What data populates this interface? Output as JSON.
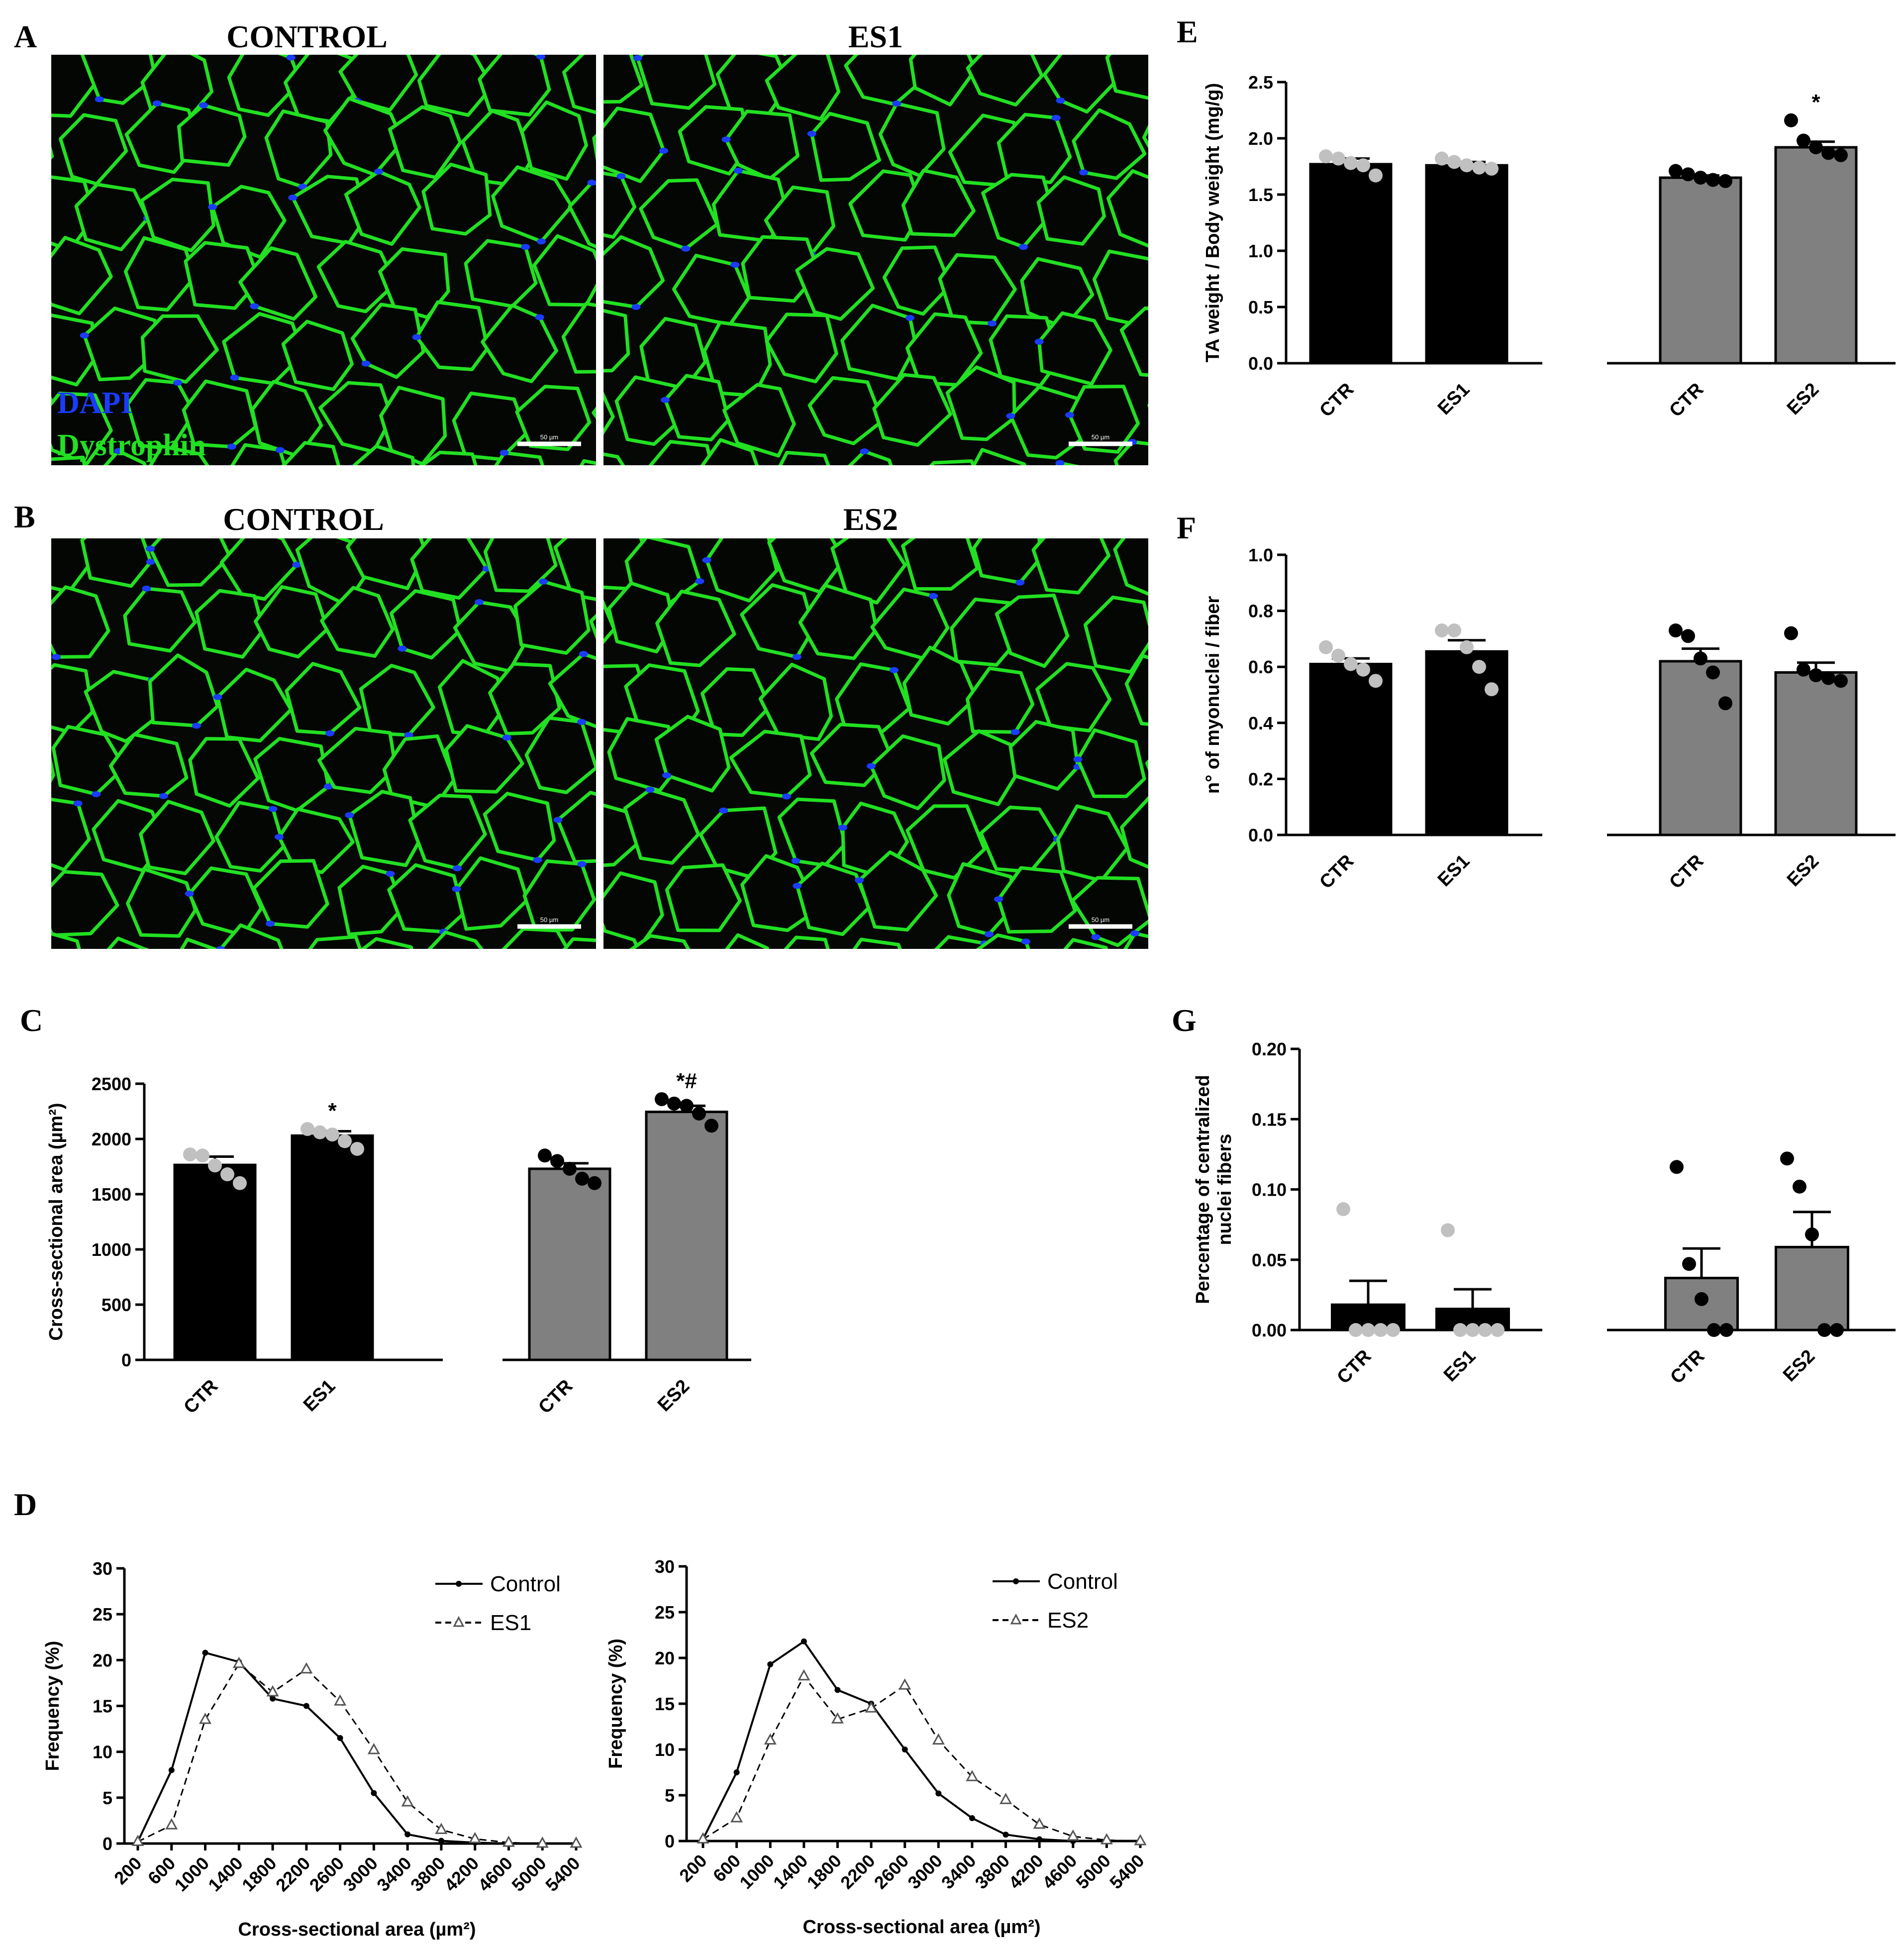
{
  "colors": {
    "group1_bar": "#000000",
    "group2_bar": "#808080",
    "dot_light": "#c0c0c0",
    "dot_dark": "#000000",
    "dapi": "#1a3cff",
    "dystrophin": "#22e022",
    "tissue_bg": "#050805",
    "scale_bar": "#ffffff"
  },
  "panels": {
    "A": {
      "label": "A",
      "left_title": "CONTROL",
      "right_title": "ES1",
      "stain_dapi": "DAPI",
      "stain_dystrophin": "Dystrophin",
      "scale_left": "50 µm",
      "scale_right": "50 µm"
    },
    "B": {
      "label": "B",
      "left_title": "CONTROL",
      "right_title": "ES2",
      "scale_left": "50 µm",
      "scale_right": "50 µm"
    },
    "C": {
      "label": "C"
    },
    "D": {
      "label": "D"
    },
    "E": {
      "label": "E"
    },
    "F": {
      "label": "F"
    },
    "G": {
      "label": "G"
    }
  },
  "chart_data": [
    {
      "id": "C",
      "type": "bar",
      "ylabel": "Cross-sectional area (µm²)",
      "ylim": [
        0,
        2500
      ],
      "yticks": [
        "0",
        "500",
        "1000",
        "1500",
        "2000",
        "2500"
      ],
      "categories": [
        "CTR",
        "ES1",
        "CTR",
        "ES2"
      ],
      "values": [
        1765,
        2030,
        1730,
        2245
      ],
      "errors": [
        75,
        40,
        50,
        55
      ],
      "annotations": [
        "",
        "*",
        "",
        "*#"
      ],
      "points": [
        [
          1860,
          1850,
          1760,
          1680,
          1600
        ],
        [
          2090,
          2060,
          2040,
          1980,
          1910
        ],
        [
          1850,
          1800,
          1730,
          1640,
          1600
        ],
        [
          2360,
          2320,
          2300,
          2230,
          2120
        ]
      ]
    },
    {
      "id": "E",
      "type": "bar",
      "ylabel": "TA weight / Body weight (mg/g)",
      "ylim": [
        0,
        2.5
      ],
      "yticks": [
        "0.0",
        "0.5",
        "1.0",
        "1.5",
        "2.0",
        "2.5"
      ],
      "categories": [
        "CTR",
        "ES1",
        "CTR",
        "ES2"
      ],
      "values": [
        1.77,
        1.76,
        1.65,
        1.92
      ],
      "errors": [
        0.05,
        0.03,
        0.02,
        0.05
      ],
      "annotations": [
        "",
        "",
        "",
        "*"
      ],
      "points": [
        [
          1.84,
          1.82,
          1.78,
          1.76,
          1.67
        ],
        [
          1.82,
          1.79,
          1.76,
          1.74,
          1.73
        ],
        [
          1.71,
          1.68,
          1.65,
          1.63,
          1.62
        ],
        [
          2.16,
          1.98,
          1.92,
          1.87,
          1.85
        ]
      ]
    },
    {
      "id": "F",
      "type": "bar",
      "ylabel": "n° of myonuclei / fiber",
      "ylim": [
        0,
        1.0
      ],
      "yticks": [
        "0.0",
        "0.2",
        "0.4",
        "0.6",
        "0.8",
        "1.0"
      ],
      "categories": [
        "CTR",
        "ES1",
        "CTR",
        "ES2"
      ],
      "values": [
        0.61,
        0.655,
        0.62,
        0.58
      ],
      "errors": [
        0.02,
        0.04,
        0.045,
        0.035
      ],
      "annotations": [
        "",
        "",
        "",
        ""
      ],
      "points": [
        [
          0.67,
          0.64,
          0.61,
          0.59,
          0.55
        ],
        [
          0.73,
          0.73,
          0.67,
          0.6,
          0.52
        ],
        [
          0.73,
          0.71,
          0.63,
          0.58,
          0.47
        ],
        [
          0.72,
          0.59,
          0.57,
          0.56,
          0.55
        ]
      ]
    },
    {
      "id": "G",
      "type": "bar",
      "ylabel": [
        "Percentage of centralized",
        "nuclei fibers"
      ],
      "ylim": [
        0,
        0.2
      ],
      "yticks": [
        "0.00",
        "0.05",
        "0.10",
        "0.15",
        "0.20"
      ],
      "categories": [
        "CTR",
        "ES1",
        "CTR",
        "ES2"
      ],
      "values": [
        0.018,
        0.015,
        0.037,
        0.059
      ],
      "errors": [
        0.017,
        0.014,
        0.021,
        0.025
      ],
      "annotations": [
        "",
        "",
        "",
        ""
      ],
      "points": [
        [
          0.086,
          0,
          0,
          0,
          0
        ],
        [
          0.071,
          0,
          0,
          0,
          0
        ],
        [
          0.116,
          0.047,
          0.022,
          0,
          0
        ],
        [
          0.122,
          0.102,
          0.068,
          0,
          0
        ]
      ]
    },
    {
      "id": "D1",
      "type": "line",
      "xlabel": "Cross-sectional area (µm²)",
      "ylabel": "Frequency (%)",
      "ylim": [
        0,
        30
      ],
      "yticks": [
        "0",
        "5",
        "10",
        "15",
        "20",
        "25",
        "30"
      ],
      "x": [
        "200",
        "600",
        "1000",
        "1400",
        "1800",
        "2200",
        "2600",
        "3000",
        "3400",
        "3800",
        "4200",
        "4600",
        "5000",
        "5400"
      ],
      "series": [
        {
          "name": "Control",
          "style": "solid",
          "values": [
            0.2,
            8,
            20.8,
            19.8,
            15.8,
            15,
            11.5,
            5.5,
            1,
            0.3,
            0.1,
            0,
            0,
            0
          ]
        },
        {
          "name": "ES1",
          "style": "dashed",
          "values": [
            0.2,
            2,
            13.5,
            19.6,
            16.5,
            19,
            15.5,
            10.2,
            4.5,
            1.5,
            0.5,
            0.1,
            0,
            0
          ]
        }
      ]
    },
    {
      "id": "D2",
      "type": "line",
      "xlabel": "Cross-sectional area (µm²)",
      "ylabel": "Frequency (%)",
      "ylim": [
        0,
        30
      ],
      "yticks": [
        "0",
        "5",
        "10",
        "15",
        "20",
        "25",
        "30"
      ],
      "x": [
        "200",
        "600",
        "1000",
        "1400",
        "1800",
        "2200",
        "2600",
        "3000",
        "3400",
        "3800",
        "4200",
        "4600",
        "5000",
        "5400"
      ],
      "series": [
        {
          "name": "Control",
          "style": "solid",
          "values": [
            0.2,
            7.5,
            19.3,
            21.8,
            16.5,
            15,
            10,
            5.2,
            2.5,
            0.7,
            0.2,
            0,
            0,
            0
          ]
        },
        {
          "name": "ES2",
          "style": "dashed",
          "values": [
            0.2,
            2.5,
            11,
            18,
            13.3,
            14.5,
            17,
            11,
            7,
            4.5,
            1.8,
            0.5,
            0.1,
            0
          ]
        }
      ]
    }
  ]
}
